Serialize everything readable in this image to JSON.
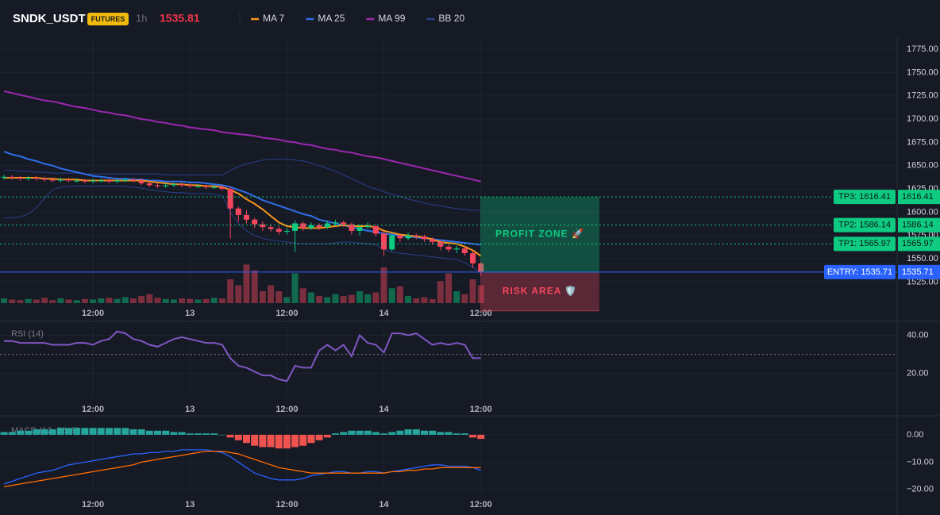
{
  "header": {
    "symbol": "SNDK_USDT",
    "badge": "FUTURES",
    "interval": "1h",
    "last_price": "1535.81"
  },
  "chart_data": [
    {
      "type": "candlestick",
      "categories": [
        null,
        null,
        null,
        null,
        null,
        null,
        null,
        null,
        null,
        null,
        null,
        "12:00",
        null,
        null,
        null,
        null,
        null,
        null,
        null,
        null,
        null,
        null,
        null,
        "13",
        null,
        null,
        null,
        null,
        null,
        null,
        null,
        null,
        null,
        null,
        null,
        "12:00",
        null,
        null,
        null,
        null,
        null,
        null,
        null,
        null,
        null,
        null,
        null,
        "14",
        null,
        null,
        null,
        null,
        null,
        null,
        null,
        null,
        null,
        null,
        null,
        "12:00"
      ],
      "open": [
        1637,
        1638,
        1637,
        1636,
        1637,
        1636,
        1635,
        1634,
        1635,
        1634,
        1634,
        1633,
        1634,
        1634,
        1633,
        1634,
        1635,
        1634,
        1631,
        1629,
        1628,
        1629,
        1630,
        1629,
        1628,
        1628,
        1627,
        1627,
        1625,
        1604,
        1597,
        1592,
        1587,
        1584,
        1582,
        1579,
        1580,
        1588,
        1583,
        1586,
        1584,
        1588,
        1589,
        1587,
        1580,
        1584,
        1585,
        1577,
        1560,
        1575,
        1572,
        1575,
        1574,
        1571,
        1568,
        1563,
        1560,
        1561,
        1556,
        1545
      ],
      "high": [
        1640,
        1640,
        1639,
        1639,
        1639,
        1638,
        1637,
        1637,
        1637,
        1636,
        1636,
        1636,
        1636,
        1636,
        1636,
        1637,
        1637,
        1636,
        1633,
        1631,
        1631,
        1632,
        1632,
        1631,
        1630,
        1630,
        1629,
        1629,
        1627,
        1606,
        1602,
        1594,
        1590,
        1587,
        1585,
        1583,
        1591,
        1590,
        1589,
        1588,
        1591,
        1592,
        1591,
        1589,
        1587,
        1589,
        1587,
        1579,
        1578,
        1577,
        1578,
        1577,
        1576,
        1573,
        1570,
        1565,
        1564,
        1563,
        1558,
        1547
      ],
      "low": [
        1635,
        1635,
        1634,
        1634,
        1634,
        1633,
        1632,
        1632,
        1632,
        1632,
        1631,
        1631,
        1632,
        1631,
        1631,
        1632,
        1632,
        1629,
        1627,
        1626,
        1626,
        1627,
        1627,
        1626,
        1626,
        1625,
        1625,
        1623,
        1572,
        1590,
        1588,
        1583,
        1580,
        1579,
        1576,
        1576,
        1557,
        1580,
        1581,
        1581,
        1582,
        1585,
        1584,
        1576,
        1575,
        1582,
        1574,
        1553,
        1558,
        1568,
        1570,
        1571,
        1568,
        1565,
        1559,
        1557,
        1556,
        1553,
        1540,
        1532
      ],
      "close": [
        1638,
        1637,
        1636,
        1637,
        1636,
        1635,
        1634,
        1635,
        1634,
        1634,
        1633,
        1634,
        1634,
        1633,
        1634,
        1635,
        1634,
        1631,
        1629,
        1628,
        1629,
        1630,
        1629,
        1628,
        1628,
        1627,
        1627,
        1625,
        1604,
        1597,
        1592,
        1587,
        1584,
        1582,
        1579,
        1580,
        1588,
        1583,
        1586,
        1584,
        1588,
        1589,
        1587,
        1580,
        1584,
        1585,
        1577,
        1560,
        1575,
        1572,
        1575,
        1574,
        1571,
        1568,
        1563,
        1560,
        1561,
        1556,
        1545,
        1535.81
      ],
      "volume": [
        8,
        6,
        5,
        7,
        6,
        9,
        5,
        8,
        6,
        5,
        7,
        6,
        8,
        9,
        7,
        10,
        8,
        12,
        15,
        9,
        7,
        6,
        8,
        7,
        6,
        7,
        9,
        8,
        40,
        30,
        65,
        55,
        20,
        30,
        20,
        10,
        50,
        25,
        18,
        12,
        10,
        15,
        12,
        14,
        20,
        15,
        18,
        60,
        25,
        28,
        12,
        8,
        10,
        7,
        37,
        50,
        20,
        15,
        40,
        30
      ],
      "up_color": "#0ecb81",
      "down_color": "#f6465d",
      "series": [
        {
          "name": "MA 7",
          "color": "#f7931a",
          "values": [
            1637,
            1637,
            1637,
            1637,
            1637,
            1636,
            1636,
            1635,
            1635,
            1635,
            1634,
            1634,
            1634,
            1634,
            1634,
            1634,
            1634,
            1634,
            1633,
            1632,
            1631,
            1630,
            1630,
            1629,
            1629,
            1628,
            1628,
            1627,
            1624,
            1620,
            1614,
            1609,
            1603,
            1596,
            1589,
            1585,
            1584,
            1583,
            1583,
            1583,
            1584,
            1585,
            1586,
            1585,
            1585,
            1585,
            1584,
            1580,
            1578,
            1576,
            1575,
            1574,
            1573,
            1571,
            1568,
            1567,
            1566,
            1563,
            1559,
            1553
          ]
        },
        {
          "name": "MA 25",
          "color": "#2f6fe8",
          "values": [
            1665,
            1662,
            1660,
            1657,
            1655,
            1652,
            1650,
            1647,
            1645,
            1643,
            1641,
            1639,
            1638,
            1637,
            1636,
            1636,
            1635,
            1635,
            1634,
            1634,
            1633,
            1633,
            1633,
            1632,
            1632,
            1631,
            1630,
            1629,
            1627,
            1624,
            1621,
            1617,
            1613,
            1610,
            1607,
            1604,
            1601,
            1598,
            1596,
            1592,
            1590,
            1588,
            1586,
            1584,
            1582,
            1580,
            1579,
            1577,
            1576,
            1575,
            1574,
            1573,
            1572,
            1571,
            1570,
            1569,
            1568,
            1567,
            1566,
            1565
          ]
        },
        {
          "name": "MA 99",
          "color": "#9c27b0",
          "values": [
            1730,
            1728,
            1726,
            1724,
            1722,
            1720,
            1719,
            1717,
            1715,
            1713,
            1712,
            1710,
            1708,
            1707,
            1705,
            1704,
            1702,
            1700,
            1699,
            1697,
            1696,
            1694,
            1693,
            1691,
            1690,
            1689,
            1688,
            1686,
            1685,
            1684,
            1683,
            1682,
            1680,
            1679,
            1678,
            1676,
            1675,
            1673,
            1672,
            1670,
            1668,
            1667,
            1665,
            1664,
            1662,
            1660,
            1659,
            1657,
            1655,
            1653,
            1651,
            1649,
            1647,
            1645,
            1643,
            1641,
            1639,
            1637,
            1635,
            1633
          ]
        },
        {
          "name": "BB 20",
          "color": "#2a3f8a",
          "upper": [
            1645,
            1645,
            1644,
            1644,
            1643,
            1643,
            1642,
            1642,
            1642,
            1642,
            1641,
            1641,
            1641,
            1641,
            1641,
            1641,
            1641,
            1641,
            1641,
            1641,
            1640,
            1640,
            1640,
            1640,
            1640,
            1640,
            1640,
            1640,
            1645,
            1649,
            1652,
            1654,
            1656,
            1657,
            1657,
            1657,
            1656,
            1655,
            1653,
            1650,
            1647,
            1644,
            1640,
            1636,
            1632,
            1628,
            1625,
            1622,
            1619,
            1617,
            1614,
            1612,
            1610,
            1608,
            1607,
            1605,
            1604,
            1603,
            1602,
            1602
          ],
          "lower": [
            1594,
            1594,
            1595,
            1598,
            1605,
            1615,
            1624,
            1627,
            1628,
            1628,
            1628,
            1628,
            1628,
            1628,
            1628,
            1628,
            1627,
            1626,
            1624,
            1623,
            1622,
            1621,
            1621,
            1620,
            1620,
            1620,
            1619,
            1618,
            1600,
            1588,
            1580,
            1575,
            1572,
            1570,
            1569,
            1568,
            1567,
            1566,
            1566,
            1566,
            1566,
            1567,
            1568,
            1568,
            1567,
            1566,
            1565,
            1560,
            1557,
            1556,
            1555,
            1554,
            1553,
            1552,
            1551,
            1550,
            1549,
            1546,
            1541,
            1535
          ]
        }
      ],
      "ylim": [
        1487,
        1787
      ],
      "yticks": [
        {
          "value": 1525,
          "label": "1525.00"
        },
        {
          "value": 1550,
          "label": "1550.00"
        },
        {
          "value": 1575,
          "label": "1575.00"
        },
        {
          "value": 1600,
          "label": "1600.00"
        },
        {
          "value": 1625,
          "label": "1625.00"
        },
        {
          "value": 1650,
          "label": "1650.00"
        },
        {
          "value": 1675,
          "label": "1675.00"
        },
        {
          "value": 1700,
          "label": "1700.00"
        },
        {
          "value": 1725,
          "label": "1725.00"
        },
        {
          "value": 1750,
          "label": "1750.00"
        },
        {
          "value": 1775,
          "label": "1775.00"
        }
      ],
      "levels": [
        {
          "label": "TP3: 1616.41",
          "value": 1616.41,
          "value_label": "1616.41",
          "color": "#0ecb81"
        },
        {
          "label": "TP2: 1586.14",
          "value": 1586.14,
          "value_label": "1586.14",
          "color": "#0ecb81"
        },
        {
          "label": "TP1: 1565.97",
          "value": 1565.97,
          "value_label": "1565.97",
          "color": "#0ecb81"
        },
        {
          "label": "ENTRY: 1535.71",
          "value": 1535.71,
          "value_label": "1535.71",
          "color": "#2962ff"
        }
      ],
      "zones": [
        {
          "label": "PROFIT ZONE 🚀",
          "from": 1535.71,
          "to": 1616.41,
          "color": "#0ecb81"
        },
        {
          "label": "RISK AREA 🛡️",
          "from": 1494,
          "to": 1535.71,
          "color": "#f6465d"
        }
      ]
    },
    {
      "type": "line",
      "title": "RSI (14)",
      "categories": [
        null,
        null,
        null,
        null,
        null,
        null,
        null,
        null,
        null,
        null,
        null,
        "12:00",
        null,
        null,
        null,
        null,
        null,
        null,
        null,
        null,
        null,
        null,
        null,
        "13",
        null,
        null,
        null,
        null,
        null,
        null,
        null,
        null,
        null,
        null,
        null,
        "12:00",
        null,
        null,
        null,
        null,
        null,
        null,
        null,
        null,
        null,
        null,
        null,
        "14",
        null,
        null,
        null,
        null,
        null,
        null,
        null,
        null,
        null,
        null,
        null,
        "12:00"
      ],
      "series": [
        {
          "color": "#7e57c2",
          "values": [
            37,
            37,
            36,
            36,
            36,
            36,
            35,
            35,
            35,
            36,
            36,
            35,
            37,
            38,
            42,
            41,
            38,
            37,
            35,
            34,
            36,
            38,
            39,
            38,
            37,
            36,
            36,
            35,
            28,
            24,
            23,
            21,
            19,
            19,
            17,
            16,
            24,
            23,
            23,
            32,
            35,
            32,
            35,
            29,
            40,
            36,
            35,
            31,
            41,
            41,
            40,
            41,
            38,
            35,
            36,
            35,
            36,
            35,
            28,
            28
          ]
        }
      ],
      "reference_line": 30,
      "ylim": [
        7,
        46
      ],
      "yticks": [
        {
          "value": 20,
          "label": "20.00"
        },
        {
          "value": 40,
          "label": "40.00"
        }
      ]
    },
    {
      "type": "macd",
      "title": "MACD (12, 26, 9)",
      "categories": [
        null,
        null,
        null,
        null,
        null,
        null,
        null,
        null,
        null,
        null,
        null,
        "12:00",
        null,
        null,
        null,
        null,
        null,
        null,
        null,
        null,
        null,
        null,
        null,
        "13",
        null,
        null,
        null,
        null,
        null,
        null,
        null,
        null,
        null,
        null,
        null,
        "12:00",
        null,
        null,
        null,
        null,
        null,
        null,
        null,
        null,
        null,
        null,
        null,
        "14",
        null,
        null,
        null,
        null,
        null,
        null,
        null,
        null,
        null,
        null,
        null,
        "12:00"
      ],
      "histogram": [
        1,
        1,
        1.5,
        1.5,
        2,
        2,
        2,
        2.5,
        2.5,
        2.5,
        2.5,
        2.5,
        2.5,
        2.5,
        2.5,
        2.5,
        2,
        2,
        1.5,
        1.5,
        1.5,
        1,
        1,
        0.5,
        0.5,
        0.5,
        0.5,
        0,
        -1,
        -2,
        -3,
        -4,
        -4.5,
        -4.5,
        -5,
        -5,
        -4.5,
        -4,
        -3,
        -2,
        -1,
        0.5,
        1,
        1.5,
        1.5,
        1.5,
        1,
        0.5,
        1,
        1.5,
        2,
        2,
        1.5,
        1.5,
        1,
        1,
        0.5,
        0.5,
        -1,
        -1.5
      ],
      "up_color": "#26a69a",
      "down_color": "#ef5350",
      "series": [
        {
          "color": "#2962ff",
          "values": [
            -18,
            -17,
            -16,
            -15,
            -14,
            -13.5,
            -13,
            -12,
            -11,
            -10.5,
            -10,
            -9.5,
            -9,
            -8.5,
            -8,
            -7.5,
            -7,
            -7,
            -6.5,
            -6.5,
            -6,
            -6,
            -5.5,
            -5.5,
            -5.5,
            -5.5,
            -6,
            -6.5,
            -8,
            -10,
            -12,
            -14,
            -15,
            -16,
            -16.5,
            -16.5,
            -16.5,
            -16,
            -15,
            -14.5,
            -14,
            -13.5,
            -13.5,
            -14,
            -14,
            -13.5,
            -13.5,
            -14,
            -13.5,
            -13,
            -12.5,
            -12,
            -11.5,
            -11,
            -11,
            -11.5,
            -11.5,
            -11.5,
            -12,
            -13
          ]
        },
        {
          "color": "#ff6d00",
          "values": [
            -19,
            -18.5,
            -18,
            -17.5,
            -17,
            -16.5,
            -16,
            -15.5,
            -15,
            -14.5,
            -14,
            -13.5,
            -13,
            -12.5,
            -12,
            -11.5,
            -11,
            -10,
            -9.5,
            -9,
            -8.5,
            -8,
            -7.5,
            -7,
            -6.5,
            -6,
            -6,
            -6,
            -6.5,
            -7,
            -8,
            -9,
            -10,
            -11,
            -12,
            -12.5,
            -13,
            -13.5,
            -14,
            -14,
            -14,
            -14,
            -14,
            -14,
            -14,
            -14,
            -14,
            -14,
            -13.5,
            -13.5,
            -13,
            -13,
            -12.5,
            -12.5,
            -12,
            -12,
            -12,
            -12,
            -12,
            -12
          ]
        }
      ],
      "ylim": [
        -21.5,
        5.2
      ],
      "yticks": [
        {
          "value": -20,
          "label": "−20.00"
        },
        {
          "value": -10,
          "label": "−10.00"
        },
        {
          "value": 0,
          "label": "0.00"
        }
      ]
    }
  ]
}
